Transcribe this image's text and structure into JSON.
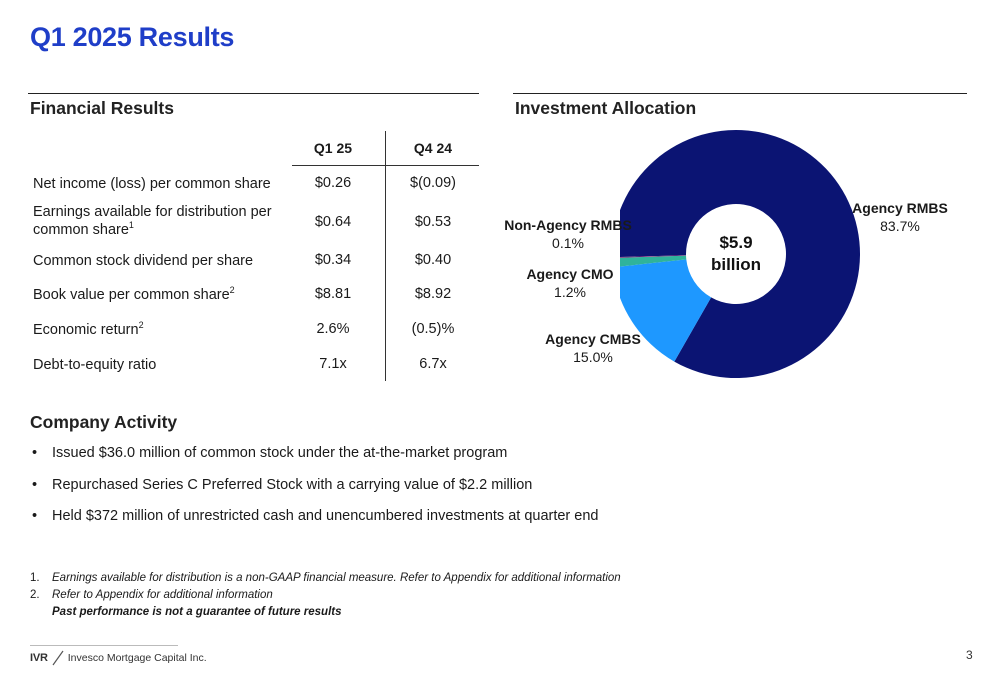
{
  "page": {
    "title": "Q1 2025 Results",
    "page_number": "3"
  },
  "financial_results": {
    "heading": "Financial Results",
    "columns": [
      "Q1 25",
      "Q4 24"
    ],
    "rows": [
      {
        "label": "Net income (loss) per common share",
        "sup": "",
        "q1_25": "$0.26",
        "q4_24": "$(0.09)"
      },
      {
        "label": "Earnings available for distribution per common share",
        "sup": "1",
        "q1_25": "$0.64",
        "q4_24": "$0.53"
      },
      {
        "label": "Common stock dividend per share",
        "sup": "",
        "q1_25": "$0.34",
        "q4_24": "$0.40"
      },
      {
        "label": "Book value per common share",
        "sup": "2",
        "q1_25": "$8.81",
        "q4_24": "$8.92"
      },
      {
        "label": "Economic return",
        "sup": "2",
        "q1_25": "2.6%",
        "q4_24": "(0.5)%"
      },
      {
        "label": "Debt-to-equity ratio",
        "sup": "",
        "q1_25": "7.1x",
        "q4_24": "6.7x"
      }
    ]
  },
  "investment_allocation": {
    "heading": "Investment Allocation",
    "center_value": "$5.9",
    "center_unit": "billion"
  },
  "chart_data": {
    "type": "pie",
    "title": "Investment Allocation",
    "center_label": "$5.9 billion",
    "categories": [
      "Agency RMBS",
      "Agency CMBS",
      "Agency CMO",
      "Non-Agency RMBS"
    ],
    "values": [
      83.7,
      15.0,
      1.2,
      0.1
    ],
    "value_labels": [
      "83.7%",
      "15.0%",
      "1.2%",
      "0.1%"
    ],
    "colors": [
      "#0b1473",
      "#1e98ff",
      "#2fb39b",
      "#8a2a7a"
    ],
    "label_colors": [
      "#0b1473",
      "#1e98ff",
      "#2fb39b",
      "#8a2a7a"
    ]
  },
  "company_activity": {
    "heading": "Company Activity",
    "bullets": [
      "Issued $36.0 million of common stock under the at-the-market program",
      "Repurchased Series C Preferred Stock with a carrying value of $2.2 million",
      "Held $372 million of unrestricted cash and unencumbered investments at quarter end"
    ]
  },
  "footnotes": {
    "items": [
      {
        "num": "1.",
        "text": "Earnings available for distribution is a non-GAAP financial measure. Refer to Appendix for additional information"
      },
      {
        "num": "2.",
        "text": "Refer to Appendix for additional information"
      }
    ],
    "disclaimer": "Past performance is not a guarantee of future results"
  },
  "footer": {
    "logo_mark": "IVR",
    "logo_name": "Invesco Mortgage Capital Inc."
  }
}
